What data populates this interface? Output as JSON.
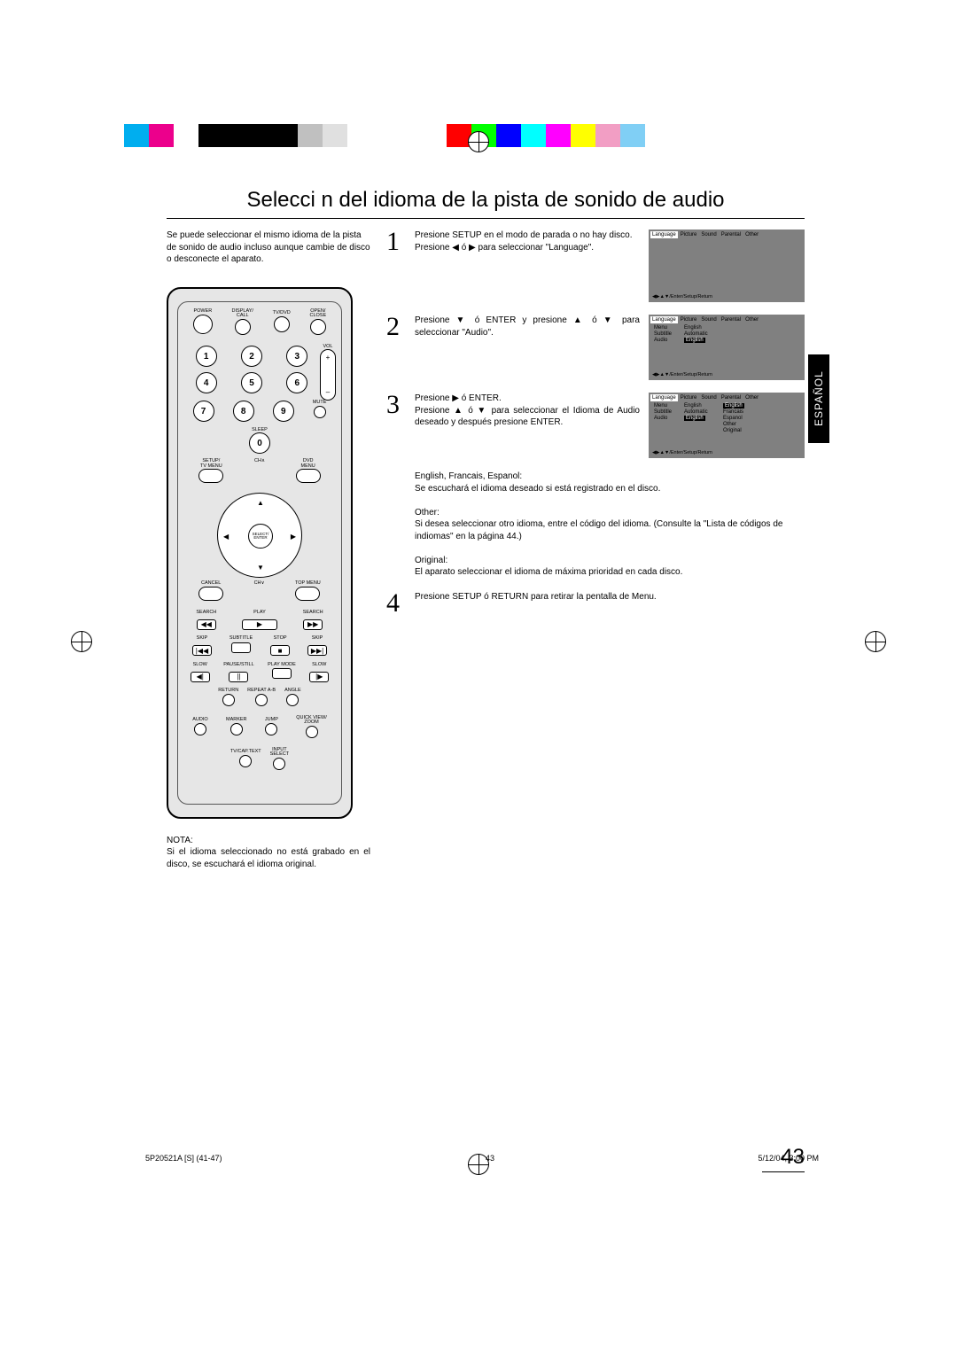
{
  "colorbar": [
    "#00aeef",
    "#ec008c",
    "#ffffff",
    "#000000",
    "#000000",
    "#000000",
    "#000000",
    "#c0c0c0",
    "#e0e0e0",
    "#ffffff",
    "#ffffff",
    "#ffffff",
    "#ffffff",
    "#ff0000",
    "#00ff00",
    "#0000ff",
    "#00ffff",
    "#ff00ff",
    "#ffff00",
    "#f29ec4",
    "#80cff5",
    "#ffffff"
  ],
  "title": "Selecci n del idioma de la pista de sonido de audio",
  "intro": "Se puede seleccionar el mismo idioma de la pista de sonido de audio incluso aunque cambie de disco o desconecte el aparato.",
  "remote": {
    "labels_top": [
      "POWER",
      "DISPLAY/\nCALL",
      "TV/DVD",
      "OPEN/\nCLOSE"
    ],
    "vol": "VOL",
    "mute": "MUTE",
    "sleep": "SLEEP",
    "tv_menu": "SETUP/\nTV MENU",
    "dvd_menu": "DVD\nMENU",
    "ch_up": "CH",
    "enter": "SELECT/\nENTER",
    "cancel": "CANCEL",
    "top_menu": "TOP MENU",
    "ch_dn": "CH",
    "row1": [
      "SEARCH",
      "PLAY",
      "SEARCH"
    ],
    "row2": [
      "SKIP",
      "SUBTITLE",
      "STOP",
      "SKIP"
    ],
    "row3": [
      "SLOW",
      "PAUSE/STILL",
      "PLAY MODE",
      "SLOW"
    ],
    "row4": [
      "RETURN",
      "REPEAT A-B",
      "ANGLE"
    ],
    "row5": [
      "AUDIO",
      "MARKER",
      "JUMP",
      "QUICK VIEW/\nZOOM"
    ],
    "row6": [
      "TV/CAP.TEXT",
      "INPUT\nSELECT"
    ]
  },
  "steps": [
    {
      "num": "1",
      "text": "Presione SETUP en el modo de parada o no hay disco.\nPresione ◀ ó ▶ para seleccionar \"Language\"."
    },
    {
      "num": "2",
      "text": "Presione ▼ ó ENTER y presione ▲ ó ▼ para seleccionar \"Audio\"."
    },
    {
      "num": "3",
      "text": "Presione ▶ ó ENTER.\nPresione ▲ ó ▼ para seleccionar el Idioma de Audio deseado y después presione ENTER."
    }
  ],
  "screens": {
    "tabs": [
      "Language",
      "Picture",
      "Sound",
      "Parental",
      "Other"
    ],
    "footer": "◀▶▲▼/Enter/Setup/Return",
    "s2": {
      "rows": [
        {
          "k": "Menu",
          "v": "English",
          "sel": false
        },
        {
          "k": "Subtitle",
          "v": "Automatic",
          "sel": false
        },
        {
          "k": "Audio",
          "v": "English",
          "sel": true
        }
      ]
    },
    "s3": {
      "rows": [
        {
          "k": "Menu",
          "v": "English",
          "v2": "English",
          "v2sel": true
        },
        {
          "k": "Subtitle",
          "v": "Automatic",
          "v2": "Francais"
        },
        {
          "k": "Audio",
          "v": "English",
          "vsel": true,
          "v2": "Espanol"
        },
        {
          "k": "",
          "v": "",
          "v2": "Other"
        },
        {
          "k": "",
          "v": "",
          "v2": "Original"
        }
      ]
    }
  },
  "extra": {
    "p1": "English, Francais, Espanol:",
    "p1b": "Se escuchará el idioma deseado si está registrado en el disco.",
    "p2": "Other:",
    "p2b": "Si desea seleccionar otro idioma, entre el código del idioma. (Consulte la \"Lista de códigos de indiomas\" en la página 44.)",
    "p3": "Original:",
    "p3b": "El aparato seleccionar el idioma de máxima prioridad en cada disco."
  },
  "step4": "Presione SETUP ó RETURN para retirar la pentalla de Menu.",
  "note": {
    "h": "NOTA:",
    "b": "Si el idioma seleccionado no está grabado en el disco, se escuchará el idioma original."
  },
  "page_num": "43",
  "side_tab": "ESPAÑOL",
  "footer": {
    "l": "5P20521A [S] (41-47)",
    "c": "43",
    "r": "5/12/04, 3:00 PM"
  }
}
